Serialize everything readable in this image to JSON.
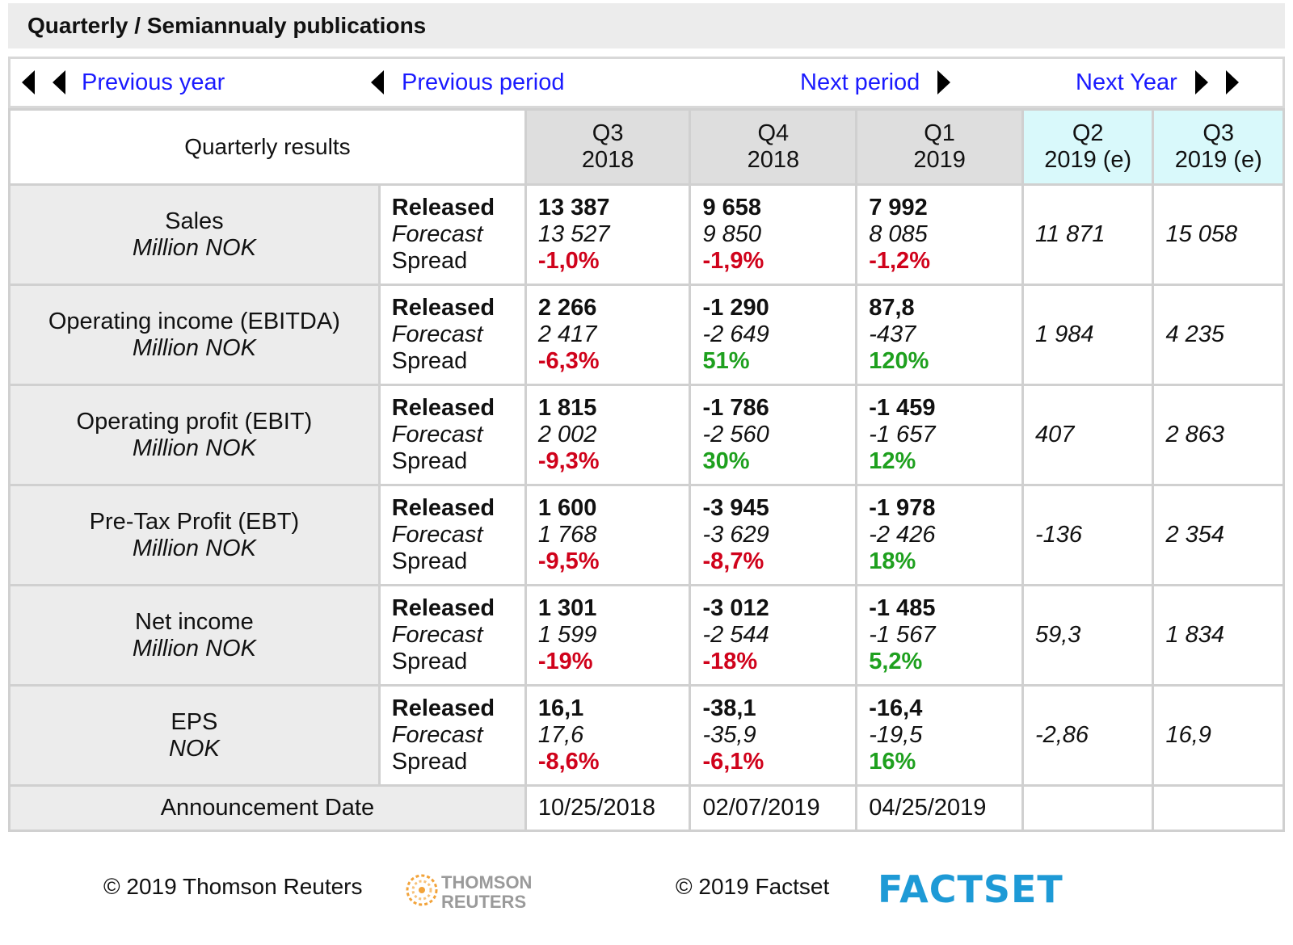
{
  "title": "Quarterly / Semiannualy publications",
  "nav": {
    "previous_year": "Previous year",
    "previous_period": "Previous period",
    "next_period": "Next period",
    "next_year": "Next Year"
  },
  "table": {
    "header_label": "Quarterly results",
    "columns": [
      {
        "quarter": "Q3",
        "year": "2018"
      },
      {
        "quarter": "Q4",
        "year": "2018"
      },
      {
        "quarter": "Q1",
        "year": "2019"
      },
      {
        "quarter": "Q2",
        "year": "2019 (e)"
      },
      {
        "quarter": "Q3",
        "year": "2019 (e)"
      }
    ],
    "row_labels": {
      "released": "Released",
      "forecast": "Forecast",
      "spread": "Spread"
    },
    "rows": [
      {
        "name": "Sales",
        "unit": "Million NOK",
        "values": [
          {
            "released": "13 387",
            "forecast": "13 527",
            "spread": "-1,0%",
            "dir": "neg"
          },
          {
            "released": "9 658",
            "forecast": "9 850",
            "spread": "-1,9%",
            "dir": "neg"
          },
          {
            "released": "7 992",
            "forecast": "8 085",
            "spread": "-1,2%",
            "dir": "neg"
          }
        ],
        "estimates": [
          "11 871",
          "15 058"
        ]
      },
      {
        "name": "Operating income",
        "name_suffix": " (EBITDA)",
        "unit": "Million NOK",
        "values": [
          {
            "released": "2 266",
            "forecast": "2 417",
            "spread": "-6,3%",
            "dir": "neg"
          },
          {
            "released": "-1 290",
            "forecast": "-2 649",
            "spread": "51%",
            "dir": "pos"
          },
          {
            "released": "87,8",
            "forecast": "-437",
            "spread": "120%",
            "dir": "pos"
          }
        ],
        "estimates": [
          "1 984",
          "4 235"
        ]
      },
      {
        "name": "Operating profit",
        "name_suffix": " (EBIT)",
        "unit": "Million NOK",
        "values": [
          {
            "released": "1 815",
            "forecast": "2 002",
            "spread": "-9,3%",
            "dir": "neg"
          },
          {
            "released": "-1 786",
            "forecast": "-2 560",
            "spread": "30%",
            "dir": "pos"
          },
          {
            "released": "-1 459",
            "forecast": "-1 657",
            "spread": "12%",
            "dir": "pos"
          }
        ],
        "estimates": [
          "407",
          "2 863"
        ]
      },
      {
        "name": "Pre-Tax Profit",
        "name_suffix": " (EBT)",
        "unit": "Million NOK",
        "values": [
          {
            "released": "1 600",
            "forecast": "1 768",
            "spread": "-9,5%",
            "dir": "neg"
          },
          {
            "released": "-3 945",
            "forecast": "-3 629",
            "spread": "-8,7%",
            "dir": "neg"
          },
          {
            "released": "-1 978",
            "forecast": "-2 426",
            "spread": "18%",
            "dir": "pos"
          }
        ],
        "estimates": [
          "-136",
          "2 354"
        ]
      },
      {
        "name": "Net income",
        "unit": "Million NOK",
        "values": [
          {
            "released": "1 301",
            "forecast": "1 599",
            "spread": "-19%",
            "dir": "neg"
          },
          {
            "released": "-3 012",
            "forecast": "-2 544",
            "spread": "-18%",
            "dir": "neg"
          },
          {
            "released": "-1 485",
            "forecast": "-1 567",
            "spread": "5,2%",
            "dir": "pos"
          }
        ],
        "estimates": [
          "59,3",
          "1 834"
        ]
      },
      {
        "name": "EPS",
        "unit": "NOK",
        "values": [
          {
            "released": "16,1",
            "forecast": "17,6",
            "spread": "-8,6%",
            "dir": "neg"
          },
          {
            "released": "-38,1",
            "forecast": "-35,9",
            "spread": "-6,1%",
            "dir": "neg"
          },
          {
            "released": "-16,4",
            "forecast": "-19,5",
            "spread": "16%",
            "dir": "pos"
          }
        ],
        "estimates": [
          "-2,86",
          "16,9"
        ]
      }
    ],
    "announcement": {
      "label": "Announcement Date",
      "dates": [
        "10/25/2018",
        "02/07/2019",
        "04/25/2019",
        "",
        ""
      ]
    }
  },
  "colors": {
    "negative": "#d0021b",
    "positive": "#1ea01e",
    "link": "#1a1aff",
    "estimate_header": "#d9f9fb"
  },
  "footer": {
    "thomson_copy": "© 2019 Thomson Reuters",
    "thomson_logo_line1": "THOMSON",
    "thomson_logo_line2": "REUTERS",
    "factset_copy": "© 2019 Factset",
    "factset_logo": "FACTSET"
  }
}
